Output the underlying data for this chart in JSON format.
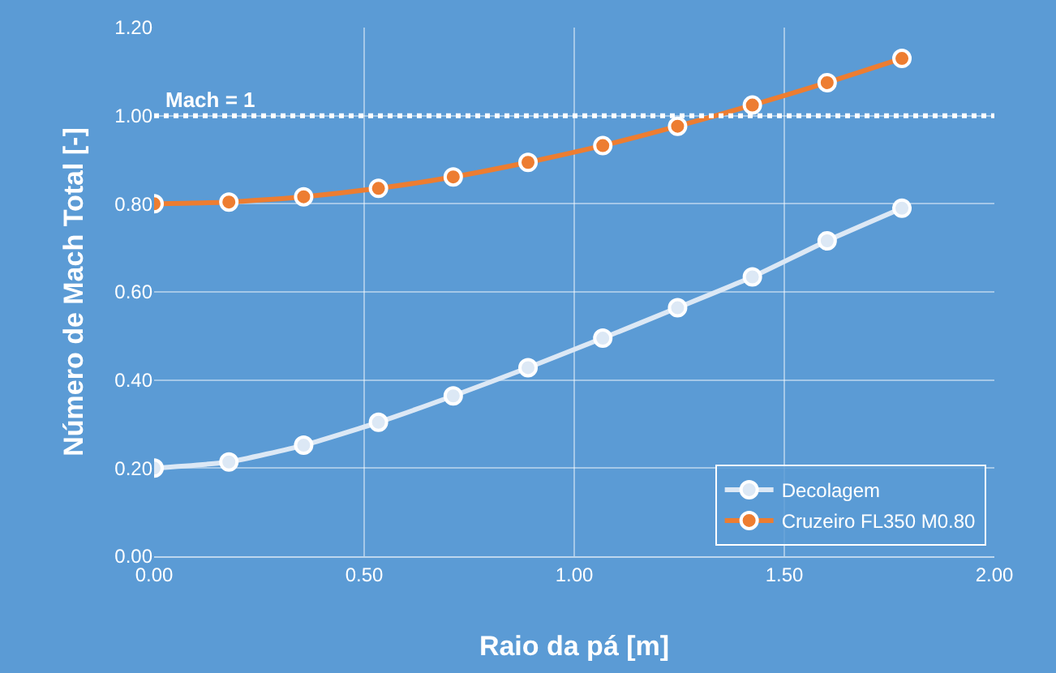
{
  "chart_data": {
    "type": "line",
    "xlabel": "Raio da pá [m]",
    "ylabel": "Número de Mach Total [-]",
    "x": [
      0,
      0.178,
      0.356,
      0.534,
      0.712,
      0.89,
      1.068,
      1.246,
      1.424,
      1.602,
      1.78
    ],
    "series": [
      {
        "name": "Decolagem",
        "color": "#dce8f5",
        "values": [
          0.2,
          0.214,
          0.252,
          0.304,
          0.364,
          0.428,
          0.495,
          0.564,
          0.634,
          0.716,
          0.79
        ]
      },
      {
        "name": "Cruzeiro FL350 M0.80",
        "color": "#ed7d31",
        "values": [
          0.8,
          0.804,
          0.816,
          0.835,
          0.861,
          0.894,
          0.932,
          0.976,
          1.024,
          1.075,
          1.13
        ]
      }
    ],
    "xlim": [
      0,
      2
    ],
    "xticks": [
      {
        "value": 0,
        "label": "0.00"
      },
      {
        "value": 0.5,
        "label": "0.50"
      },
      {
        "value": 1,
        "label": "1.00"
      },
      {
        "value": 1.5,
        "label": "1.50"
      },
      {
        "value": 2,
        "label": "2.00"
      }
    ],
    "ylim": [
      0,
      1.2
    ],
    "yticks": [
      {
        "value": 0,
        "label": "0.00"
      },
      {
        "value": 0.2,
        "label": "0.20"
      },
      {
        "value": 0.4,
        "label": "0.40"
      },
      {
        "value": 0.6,
        "label": "0.60"
      },
      {
        "value": 0.8,
        "label": "0.80"
      },
      {
        "value": 1,
        "label": "1.00"
      },
      {
        "value": 1.2,
        "label": "1.20"
      }
    ],
    "ref_lines": [
      {
        "axis": "y",
        "value": 1,
        "label": "Mach = 1",
        "color": "#ffffff",
        "line_style": "dotted"
      }
    ],
    "grid": true,
    "legend": "bottom right",
    "marker": "circle",
    "line_style": "solid"
  }
}
